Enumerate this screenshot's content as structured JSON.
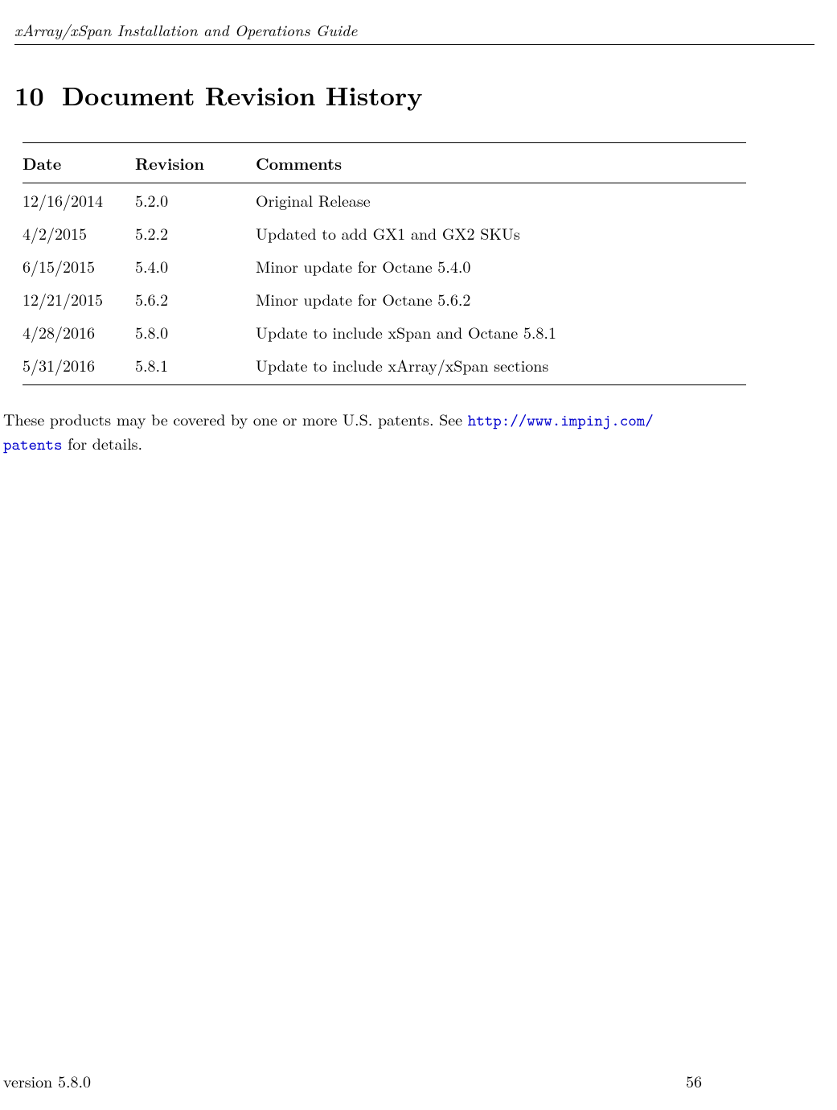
{
  "header": {
    "running_title": "xArray/xSpan Installation and Operations Guide"
  },
  "section": {
    "number": "10",
    "title": "Document Revision History"
  },
  "table": {
    "columns": [
      "Date",
      "Revision",
      "Comments"
    ],
    "rows": [
      {
        "date": "12/16/2014",
        "revision": "5.2.0",
        "comments": "Original Release"
      },
      {
        "date": "4/2/2015",
        "revision": "5.2.2",
        "comments": "Updated to add GX1 and GX2 SKUs"
      },
      {
        "date": "6/15/2015",
        "revision": "5.4.0",
        "comments": "Minor update for Octane 5.4.0"
      },
      {
        "date": "12/21/2015",
        "revision": "5.6.2",
        "comments": "Minor update for Octane 5.6.2"
      },
      {
        "date": "4/28/2016",
        "revision": "5.8.0",
        "comments": "Update to include xSpan and Octane 5.8.1"
      },
      {
        "date": "5/31/2016",
        "revision": "5.8.1",
        "comments": "Update to include xArray/xSpan sections"
      }
    ]
  },
  "patent": {
    "prefix": "These products may be covered by one or more U.S. patents.  See ",
    "url_line1": "http://www.impinj.com/",
    "url_line2": "patents",
    "suffix": " for details."
  },
  "footer": {
    "version_label": "version 5.8.0",
    "page_number": "56"
  },
  "colors": {
    "text": "#000000",
    "link": "#0000cd",
    "background": "#ffffff",
    "rule": "#000000"
  },
  "typography": {
    "body_fontsize_pt": 12,
    "heading_fontsize_pt": 20,
    "font_family": "Computer Modern / Latin Modern (serif)",
    "mono_font_family": "Latin Modern Mono / Courier"
  }
}
